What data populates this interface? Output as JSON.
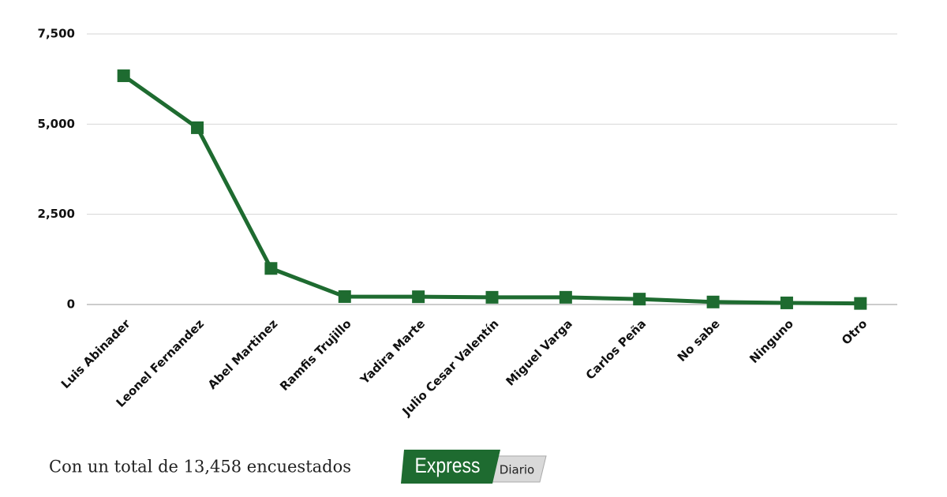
{
  "chart_data": {
    "type": "line",
    "categories": [
      "Luis Abinader",
      "Leonel Fernandez",
      "Abel Martinez",
      "Ramfis Trujillo",
      "Yadira Marte",
      "Julio Cesar Valentín",
      "Miguel Varga",
      "Carlos Peña",
      "No sabe",
      "Ninguno",
      "Otro"
    ],
    "values": [
      6340,
      4900,
      1000,
      220,
      215,
      200,
      200,
      150,
      70,
      45,
      30
    ],
    "color": "#1e6b30",
    "ylim": [
      0,
      7500
    ],
    "yticks": [
      0,
      {
        "value": 2500,
        "label": "2,500"
      },
      {
        "value": 5000,
        "label": "5,000"
      },
      {
        "value": 7500,
        "label": "7,500"
      }
    ],
    "grid": true,
    "footnote": "Con un total de 13,458 encuestados"
  },
  "logo": {
    "name": "Express",
    "sub": "Diario"
  }
}
